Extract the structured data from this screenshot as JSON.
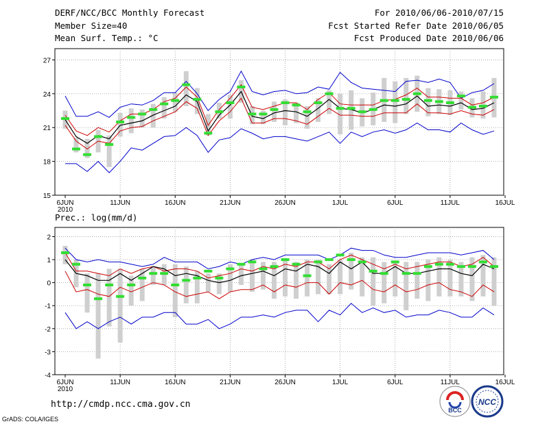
{
  "header": {
    "title": "DERF/NCC/BCC Monthly Forecast",
    "member_size": "Member Size=40",
    "variable": "Mean Surf. Temp.: °C",
    "period": "For 2010/06/06-2010/07/15",
    "started": "Fcst Started Refer Date 2010/06/05",
    "produced": "Fcst Produced Date 2010/06/06"
  },
  "footer": {
    "url": "http://cmdp.ncc.cma.gov.cn",
    "grads": "GrADS: COLA/IGES",
    "logo_bcc": "BCC",
    "logo_ncc": "NCC"
  },
  "colors": {
    "max": "#0000cc",
    "min": "#0000cc",
    "band": "#cc0000",
    "mean": "#000000",
    "obs": "#33dd33",
    "box": "#cfcfcf"
  },
  "chart_data": [
    {
      "type": "line",
      "title": "Mean Surf. Temp.: °C",
      "x_tick_labels": [
        "6JUN",
        "11JUN",
        "16JUN",
        "21JUN",
        "26JUN",
        "1JUL",
        "6JUL",
        "11JUL",
        "16JUL"
      ],
      "x_year_label": "2010",
      "ylim": [
        15,
        28
      ],
      "yticks": [
        15,
        18,
        21,
        24,
        27
      ],
      "series": [
        {
          "name": "max",
          "values": [
            23.8,
            22.0,
            22.0,
            22.4,
            21.9,
            22.8,
            23.1,
            23.0,
            23.4,
            24.1,
            24.1,
            25.1,
            24.0,
            22.5,
            23.5,
            24.2,
            26.0,
            24.2,
            23.9,
            24.2,
            24.3,
            24.0,
            24.1,
            24.6,
            24.4,
            25.9,
            25.0,
            24.5,
            24.4,
            24.3,
            24.2,
            25.1,
            25.2,
            25.0,
            25.3,
            25.0,
            23.6,
            24.1,
            24.3,
            24.9
          ]
        },
        {
          "name": "upper",
          "values": [
            22.1,
            20.7,
            20.3,
            21.0,
            20.6,
            21.6,
            22.2,
            22.2,
            22.6,
            23.3,
            23.6,
            24.6,
            23.7,
            21.2,
            22.6,
            23.6,
            24.8,
            22.8,
            22.6,
            22.9,
            23.2,
            23.2,
            22.6,
            23.5,
            24.1,
            23.1,
            23.0,
            23.0,
            23.0,
            23.4,
            23.5,
            23.9,
            24.5,
            23.7,
            23.7,
            23.6,
            23.6,
            23.0,
            23.2,
            23.7
          ]
        },
        {
          "name": "mean",
          "values": [
            21.7,
            20.2,
            19.6,
            20.3,
            20.0,
            21.2,
            21.4,
            21.6,
            22.1,
            22.5,
            22.9,
            23.9,
            23.3,
            20.7,
            22.1,
            23.0,
            24.2,
            22.0,
            21.8,
            22.3,
            22.5,
            22.4,
            22.0,
            22.7,
            23.5,
            22.7,
            22.6,
            22.3,
            22.6,
            23.0,
            22.9,
            23.1,
            23.8,
            22.9,
            23.0,
            22.9,
            23.2,
            22.6,
            22.7,
            23.2
          ]
        },
        {
          "name": "lower",
          "values": [
            21.2,
            19.8,
            19.1,
            19.8,
            19.6,
            20.7,
            21.0,
            21.1,
            21.6,
            22.0,
            22.4,
            23.3,
            22.7,
            20.3,
            21.6,
            22.4,
            23.6,
            21.4,
            21.4,
            21.8,
            21.8,
            21.6,
            21.3,
            22.0,
            22.7,
            22.1,
            22.1,
            22.0,
            22.0,
            22.3,
            22.3,
            22.3,
            23.1,
            22.3,
            22.3,
            22.2,
            22.5,
            22.2,
            22.1,
            22.6
          ]
        },
        {
          "name": "min",
          "values": [
            17.8,
            17.8,
            17.1,
            18.0,
            17.0,
            18.0,
            19.2,
            19.0,
            19.6,
            20.2,
            20.3,
            21.0,
            20.3,
            18.8,
            19.9,
            20.1,
            20.9,
            20.5,
            20.0,
            20.2,
            20.2,
            20.0,
            19.8,
            20.2,
            20.6,
            19.6,
            20.6,
            20.2,
            20.6,
            20.8,
            20.5,
            20.8,
            21.4,
            20.8,
            20.8,
            20.6,
            21.4,
            20.8,
            20.4,
            20.7
          ]
        },
        {
          "name": "observed",
          "values": [
            21.8,
            19.1,
            18.6,
            20.2,
            19.5,
            21.5,
            21.9,
            22.2,
            22.6,
            23.1,
            23.4,
            24.8,
            23.5,
            20.5,
            22.4,
            23.2,
            24.6,
            22.2,
            22.2,
            22.6,
            23.2,
            23.0,
            22.4,
            23.2,
            24.0,
            22.7,
            22.7,
            22.4,
            22.6,
            23.4,
            23.4,
            23.5,
            24.0,
            23.4,
            23.3,
            23.2,
            23.8,
            22.8,
            22.9,
            23.7
          ]
        },
        {
          "name": "box_top",
          "values": [
            22.5,
            20.1,
            20.0,
            20.8,
            20.3,
            22.3,
            22.7,
            22.6,
            23.1,
            23.7,
            24.1,
            26.0,
            24.5,
            22.2,
            23.2,
            23.9,
            25.2,
            22.9,
            22.5,
            23.3,
            23.5,
            23.2,
            22.9,
            23.6,
            24.3,
            24.0,
            24.3,
            23.6,
            24.1,
            25.4,
            25.1,
            25.4,
            25.6,
            24.5,
            24.4,
            24.3,
            24.2,
            23.6,
            24.2,
            25.4
          ]
        },
        {
          "name": "box_bottom",
          "values": [
            20.9,
            18.8,
            18.3,
            18.8,
            17.5,
            20.2,
            20.5,
            21.0,
            21.0,
            21.8,
            22.4,
            22.9,
            22.2,
            20.3,
            21.8,
            21.8,
            23.2,
            21.3,
            21.3,
            21.5,
            21.2,
            21.4,
            20.9,
            21.5,
            22.2,
            20.4,
            20.8,
            21.1,
            21.2,
            21.5,
            21.4,
            22.2,
            22.4,
            22.0,
            22.2,
            22.1,
            22.6,
            21.9,
            21.8,
            21.9
          ]
        }
      ]
    },
    {
      "type": "line",
      "title": "Prec.: log(mm/d)",
      "x_tick_labels": [
        "6JUN",
        "11JUN",
        "16JUN",
        "21JUN",
        "26JUN",
        "1JUL",
        "6JUL",
        "11JUL",
        "16JUL"
      ],
      "x_year_label": "2010",
      "ylim": [
        -4,
        2.4
      ],
      "yticks": [
        -4,
        -3,
        -2,
        -1,
        0,
        1,
        2
      ],
      "series": [
        {
          "name": "max",
          "values": [
            1.5,
            1.0,
            0.9,
            1.0,
            0.9,
            0.9,
            0.8,
            0.7,
            0.8,
            1.1,
            0.9,
            0.9,
            0.9,
            0.6,
            0.7,
            0.9,
            0.8,
            1.0,
            1.1,
            1.0,
            1.2,
            1.2,
            1.2,
            1.2,
            1.0,
            1.2,
            1.5,
            1.4,
            1.4,
            1.2,
            1.1,
            1.1,
            1.2,
            1.3,
            1.3,
            1.3,
            1.2,
            1.3,
            1.4,
            1.0
          ]
        },
        {
          "name": "upper",
          "values": [
            1.3,
            0.5,
            0.5,
            0.4,
            0.3,
            0.6,
            0.4,
            0.6,
            0.7,
            0.5,
            0.6,
            0.6,
            0.5,
            0.2,
            0.3,
            0.4,
            0.6,
            0.5,
            0.7,
            0.6,
            0.8,
            0.7,
            0.9,
            0.9,
            0.6,
            1.0,
            1.2,
            1.0,
            0.8,
            0.6,
            0.8,
            0.6,
            0.7,
            0.8,
            0.9,
            0.9,
            0.7,
            0.8,
            1.1,
            0.7
          ]
        },
        {
          "name": "mean",
          "values": [
            1.0,
            0.4,
            0.3,
            0.1,
            0.1,
            0.4,
            0.1,
            0.4,
            0.7,
            0.6,
            0.3,
            0.4,
            0.3,
            0.1,
            0.0,
            0.1,
            0.3,
            0.4,
            0.5,
            0.3,
            0.6,
            0.5,
            0.8,
            0.7,
            0.4,
            0.9,
            0.6,
            0.9,
            0.4,
            0.4,
            0.7,
            0.4,
            0.4,
            0.5,
            0.6,
            0.6,
            0.4,
            0.3,
            0.8,
            0.6
          ]
        },
        {
          "name": "lower",
          "values": [
            0.5,
            -0.4,
            -0.3,
            -0.5,
            -0.6,
            -0.2,
            -0.4,
            -0.2,
            0.0,
            -0.1,
            -0.4,
            -0.6,
            -0.5,
            -0.4,
            -0.7,
            -0.4,
            -0.3,
            -0.3,
            -0.1,
            -0.4,
            -0.1,
            -0.2,
            0.0,
            0.0,
            -0.5,
            0.0,
            -0.1,
            0.1,
            -0.3,
            -0.4,
            -0.1,
            -0.4,
            -0.3,
            -0.1,
            0.0,
            -0.3,
            -0.4,
            -0.6,
            -0.1,
            -0.4
          ]
        },
        {
          "name": "min",
          "values": [
            -1.3,
            -2.0,
            -1.7,
            -2.0,
            -1.7,
            -1.5,
            -1.8,
            -1.5,
            -1.5,
            -1.3,
            -1.3,
            -1.8,
            -1.8,
            -1.6,
            -2.0,
            -1.8,
            -1.5,
            -1.5,
            -1.4,
            -1.5,
            -1.3,
            -1.2,
            -1.2,
            -1.7,
            -1.2,
            -1.4,
            -0.9,
            -1.3,
            -1.1,
            -1.3,
            -1.2,
            -1.5,
            -1.4,
            -1.4,
            -1.2,
            -1.3,
            -1.5,
            -1.5,
            -1.1,
            -1.4
          ]
        },
        {
          "name": "observed",
          "values": [
            1.3,
            0.8,
            -0.1,
            -0.7,
            -0.1,
            -0.6,
            -0.1,
            0.2,
            0.4,
            0.4,
            -0.1,
            0.1,
            0.2,
            0.5,
            0.2,
            0.6,
            0.8,
            0.9,
            0.6,
            0.7,
            1.0,
            0.8,
            0.3,
            0.9,
            1.0,
            1.2,
            1.0,
            0.9,
            0.5,
            0.4,
            0.9,
            0.4,
            0.4,
            0.7,
            0.8,
            0.8,
            0.7,
            0.7,
            0.9,
            0.7
          ]
        },
        {
          "name": "box_top",
          "values": [
            1.6,
            1.0,
            0.4,
            0.4,
            0.6,
            0.6,
            0.3,
            0.6,
            0.7,
            0.8,
            0.8,
            0.7,
            0.5,
            0.4,
            0.4,
            0.8,
            0.8,
            1.0,
            0.9,
            0.9,
            1.0,
            0.9,
            1.0,
            1.0,
            0.8,
            1.0,
            1.3,
            1.1,
            1.1,
            0.9,
            0.9,
            0.9,
            0.9,
            1.0,
            1.1,
            1.0,
            0.9,
            1.1,
            1.2,
            1.1
          ]
        },
        {
          "name": "box_bottom",
          "values": [
            0.8,
            -0.2,
            -1.3,
            -3.3,
            -1.9,
            -2.6,
            -1.0,
            -0.8,
            -0.1,
            -0.1,
            -1.5,
            -0.9,
            -0.9,
            -0.4,
            -0.5,
            -0.4,
            -0.1,
            -0.4,
            -0.3,
            -0.7,
            -0.6,
            -0.7,
            -0.6,
            -0.5,
            -0.5,
            -0.5,
            -0.3,
            -0.6,
            -1.0,
            -0.9,
            -0.6,
            -1.2,
            -0.7,
            -0.8,
            -0.6,
            -0.6,
            -0.6,
            -0.8,
            -0.6,
            -1.0
          ]
        }
      ]
    }
  ]
}
